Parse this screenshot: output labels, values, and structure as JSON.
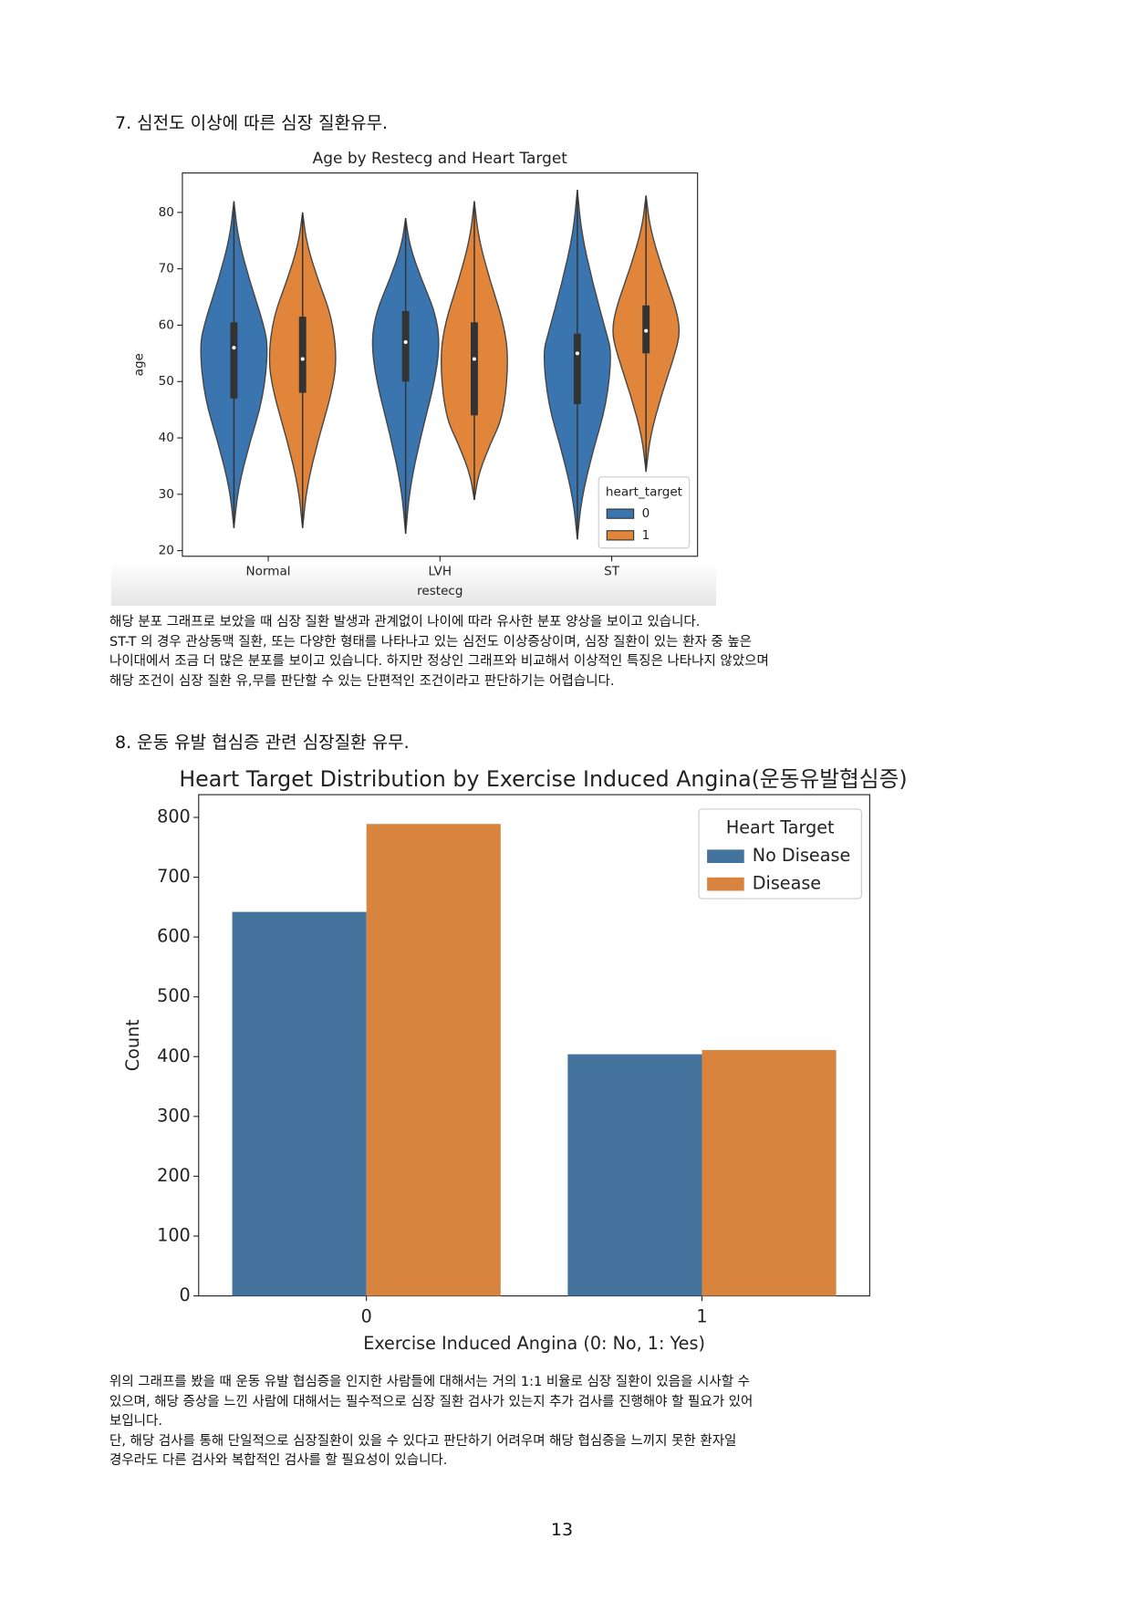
{
  "sections": [
    {
      "heading": "7. 심전도 이상에 따른 심장 질환유무.",
      "paragraph": [
        "해당 분포 그래프로 보았을 때 심장 질환 발생과 관계없이 나이에 따라 유사한 분포 양상을 보이고 있습니다.",
        "ST-T 의 경우 관상동맥 질환, 또는 다양한 형태를 나타나고 있는 심전도 이상증상이며, 심장 질환이 있는 환자 중 높은",
        "나이대에서 조금 더 많은 분포를 보이고 있습니다. 하지만 정상인 그래프와 비교해서 이상적인 특징은 나타나지 않았으며",
        "해당 조건이 심장 질환 유,무를 판단할 수 있는 단편적인 조건이라고 판단하기는 어렵습니다."
      ]
    },
    {
      "heading": "8. 운동 유발 협심증 관련 심장질환 유무.",
      "paragraph": [
        "위의 그래프를 봤을 때 운동 유발 협심증을 인지한 사람들에 대해서는 거의 1:1 비율로 심장 질환이 있음을 시사할 수",
        "있으며, 해당 증상을 느낀 사람에 대해서는 필수적으로 심장 질환 검사가 있는지 추가 검사를 진행해야 할 필요가 있어",
        "보입니다.",
        "단, 해당 검사를 통해 단일적으로 심장질환이 있을 수 있다고 판단하기 어려우며 해당 협심증을 느끼지 못한 환자일",
        "경우라도 다른 검사와 복합적인 검사를 할 필요성이 있습니다."
      ]
    }
  ],
  "chart_data": [
    {
      "type": "violin",
      "title": "Age by Restecg and Heart Target",
      "x_label": "restecg",
      "y_label": "age",
      "categories": [
        "Normal",
        "LVH",
        "ST"
      ],
      "series": [
        {
          "name": "0",
          "color": "#3a75af",
          "min": [
            24,
            23,
            22
          ],
          "q1": [
            47,
            50,
            46
          ],
          "median": [
            56,
            57,
            55
          ],
          "q3": [
            60.5,
            62.5,
            58.5
          ],
          "max": [
            82,
            79,
            84
          ]
        },
        {
          "name": "1",
          "color": "#e0853a",
          "min": [
            24,
            29,
            34
          ],
          "q1": [
            48,
            44,
            55
          ],
          "median": [
            54,
            54,
            59
          ],
          "q3": [
            61.5,
            60.5,
            63.5
          ],
          "max": [
            80,
            82,
            83
          ]
        }
      ],
      "ylim": [
        19,
        87
      ],
      "yticks": [
        20,
        30,
        40,
        50,
        60,
        70,
        80
      ],
      "legend_title": "heart_target",
      "legend": "lower right"
    },
    {
      "type": "bar",
      "title": "Heart Target Distribution by Exercise Induced Angina(운동유발협심증)",
      "x_label": "Exercise Induced Angina (0: No, 1: Yes)",
      "y_label": "Count",
      "categories": [
        "0",
        "1"
      ],
      "series": [
        {
          "name": "No Disease",
          "color": "#44739d",
          "values": [
            642,
            404
          ]
        },
        {
          "name": "Disease",
          "color": "#d8843f",
          "values": [
            789,
            411
          ]
        }
      ],
      "ylim": [
        0,
        838
      ],
      "yticks": [
        0,
        100,
        200,
        300,
        400,
        500,
        600,
        700,
        800
      ],
      "legend_title": "Heart Target",
      "legend": "upper right"
    }
  ],
  "page_number": "13"
}
